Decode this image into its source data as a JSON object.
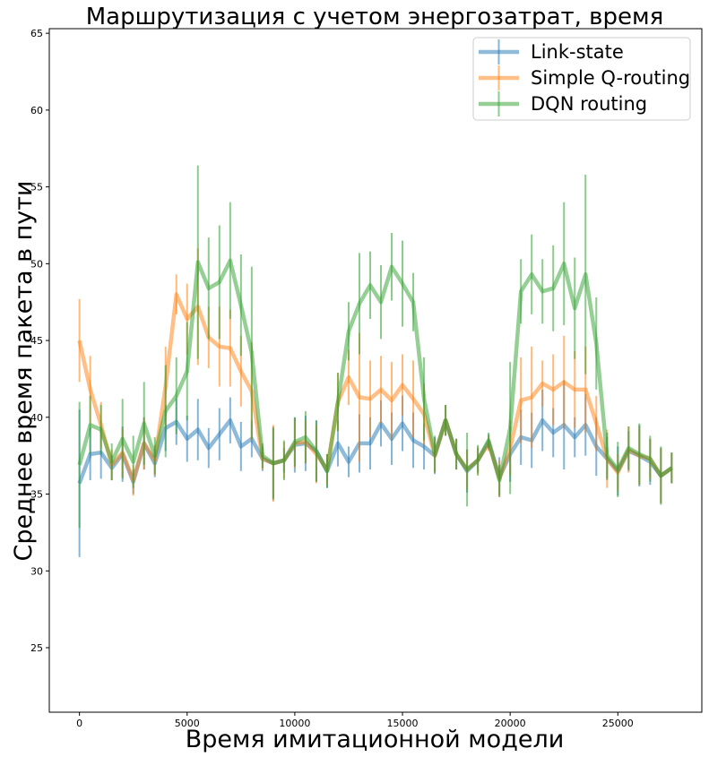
{
  "chart_data": {
    "type": "line",
    "title": "Маршрутизация с учетом энергозатрат, время",
    "xlabel": "Время имитационной модели",
    "ylabel": "Среднее время пакета в пути",
    "xlim": [
      -1400,
      28900
    ],
    "ylim": [
      20.8,
      65.3
    ],
    "xticks": [
      0,
      5000,
      10000,
      15000,
      20000,
      25000
    ],
    "yticks": [
      25,
      30,
      35,
      40,
      45,
      50,
      55,
      60,
      65
    ],
    "grid": false,
    "legend_position": "top-right",
    "error_bars": true,
    "x": [
      0,
      500,
      1000,
      1500,
      2000,
      2500,
      3000,
      3500,
      4000,
      4500,
      5000,
      5500,
      6000,
      6500,
      7000,
      7500,
      8000,
      8500,
      9000,
      9500,
      10000,
      10500,
      11000,
      11500,
      12000,
      12500,
      13000,
      13500,
      14000,
      14500,
      15000,
      15500,
      16000,
      16500,
      17000,
      17500,
      18000,
      18500,
      19000,
      19500,
      20000,
      20500,
      21000,
      21500,
      22000,
      22500,
      23000,
      23500,
      24000,
      24500,
      25000,
      25500,
      26000,
      26500,
      27000,
      27500
    ],
    "series": [
      {
        "name": "Link-state",
        "color": "#1f77b4",
        "values": [
          35.7,
          37.6,
          37.7,
          36.7,
          37.6,
          35.8,
          38.3,
          37.0,
          39.3,
          39.7,
          38.6,
          39.2,
          38.0,
          38.9,
          39.8,
          38.1,
          38.6,
          37.3,
          37.0,
          37.2,
          38.2,
          38.3,
          37.8,
          36.5,
          38.3,
          37.1,
          38.3,
          38.3,
          39.6,
          38.6,
          39.6,
          38.5,
          38.1,
          37.5,
          39.8,
          37.6,
          36.5,
          37.2,
          38.4,
          36.1,
          37.6,
          38.7,
          38.5,
          39.8,
          39.0,
          39.5,
          38.7,
          39.5,
          38.1,
          37.3,
          36.5,
          37.8,
          37.5,
          37.1,
          36.2,
          36.7
        ],
        "errors": [
          4.8,
          1.7,
          1.7,
          0.8,
          1.8,
          0.8,
          1.7,
          0.9,
          1.5,
          1.5,
          1.5,
          2.0,
          1.3,
          1.7,
          1.5,
          1.6,
          1.2,
          0.8,
          2.4,
          0.8,
          1.8,
          1.8,
          2.0,
          1.1,
          1.5,
          1.0,
          1.9,
          1.7,
          1.5,
          1.7,
          1.8,
          1.8,
          1.5,
          1.2,
          1.0,
          1.0,
          1.4,
          0.8,
          0.5,
          1.3,
          1.8,
          1.8,
          1.8,
          2.0,
          1.6,
          2.9,
          1.3,
          2.0,
          1.9,
          1.4,
          1.6,
          1.3,
          2.0,
          1.5,
          1.8,
          1.0
        ]
      },
      {
        "name": "Simple Q-routing",
        "color": "#ff7f0e",
        "values": [
          45.0,
          41.8,
          39.5,
          36.9,
          37.7,
          35.9,
          38.3,
          37.2,
          42.0,
          48.0,
          46.4,
          47.2,
          45.2,
          44.6,
          44.5,
          43.0,
          41.7,
          37.3,
          37.0,
          37.2,
          38.3,
          38.4,
          37.6,
          36.6,
          41.0,
          42.6,
          41.3,
          41.2,
          41.8,
          41.1,
          42.1,
          41.2,
          40.2,
          37.5,
          39.8,
          37.6,
          36.6,
          37.2,
          38.3,
          36.0,
          38.0,
          41.1,
          41.3,
          42.2,
          41.8,
          42.3,
          41.8,
          41.8,
          39.6,
          37.3,
          36.4,
          37.9,
          37.5,
          37.3,
          36.2,
          36.7
        ],
        "errors": [
          2.7,
          2.2,
          1.5,
          1.0,
          1.6,
          1.0,
          1.7,
          1.0,
          2.6,
          1.3,
          2.3,
          3.8,
          2.0,
          2.6,
          2.5,
          2.3,
          3.2,
          0.7,
          2.5,
          1.2,
          1.6,
          1.4,
          1.9,
          1.0,
          1.9,
          1.8,
          4.2,
          2.5,
          2.2,
          2.5,
          2.0,
          2.5,
          2.0,
          1.1,
          1.0,
          1.0,
          1.3,
          0.9,
          0.5,
          1.2,
          1.8,
          2.8,
          3.3,
          1.5,
          2.3,
          3.0,
          2.5,
          2.8,
          1.8,
          1.9,
          1.2,
          1.5,
          1.9,
          1.3,
          1.8,
          1.0
        ]
      },
      {
        "name": "DQN routing",
        "color": "#2ca02c",
        "values": [
          36.9,
          39.5,
          39.2,
          37.1,
          38.6,
          37.1,
          39.6,
          37.5,
          40.4,
          41.4,
          43.0,
          50.1,
          48.4,
          48.8,
          50.2,
          47.3,
          44.2,
          37.5,
          37.0,
          37.2,
          38.4,
          38.7,
          37.8,
          36.5,
          41.0,
          45.6,
          47.4,
          48.6,
          47.5,
          49.8,
          48.7,
          47.5,
          41.2,
          37.6,
          39.8,
          37.6,
          36.6,
          37.2,
          38.5,
          35.9,
          39.3,
          48.2,
          49.3,
          48.2,
          48.4,
          50.0,
          47.1,
          49.3,
          44.8,
          37.5,
          36.6,
          38.0,
          37.6,
          37.3,
          36.2,
          36.7
        ],
        "errors": [
          4.1,
          1.9,
          1.6,
          1.2,
          2.6,
          1.7,
          2.7,
          1.2,
          3.0,
          2.5,
          3.2,
          6.3,
          3.3,
          3.7,
          3.8,
          3.3,
          5.6,
          0.8,
          2.3,
          1.3,
          1.6,
          1.7,
          2.0,
          1.1,
          1.9,
          1.9,
          3.3,
          2.2,
          2.4,
          2.2,
          2.8,
          1.9,
          2.7,
          1.2,
          1.0,
          1.0,
          2.4,
          1.0,
          0.5,
          1.0,
          4.3,
          2.1,
          2.6,
          2.1,
          2.8,
          4.0,
          3.3,
          6.5,
          3.0,
          1.5,
          1.8,
          1.4,
          2.0,
          1.5,
          1.9,
          1.0
        ]
      }
    ]
  }
}
